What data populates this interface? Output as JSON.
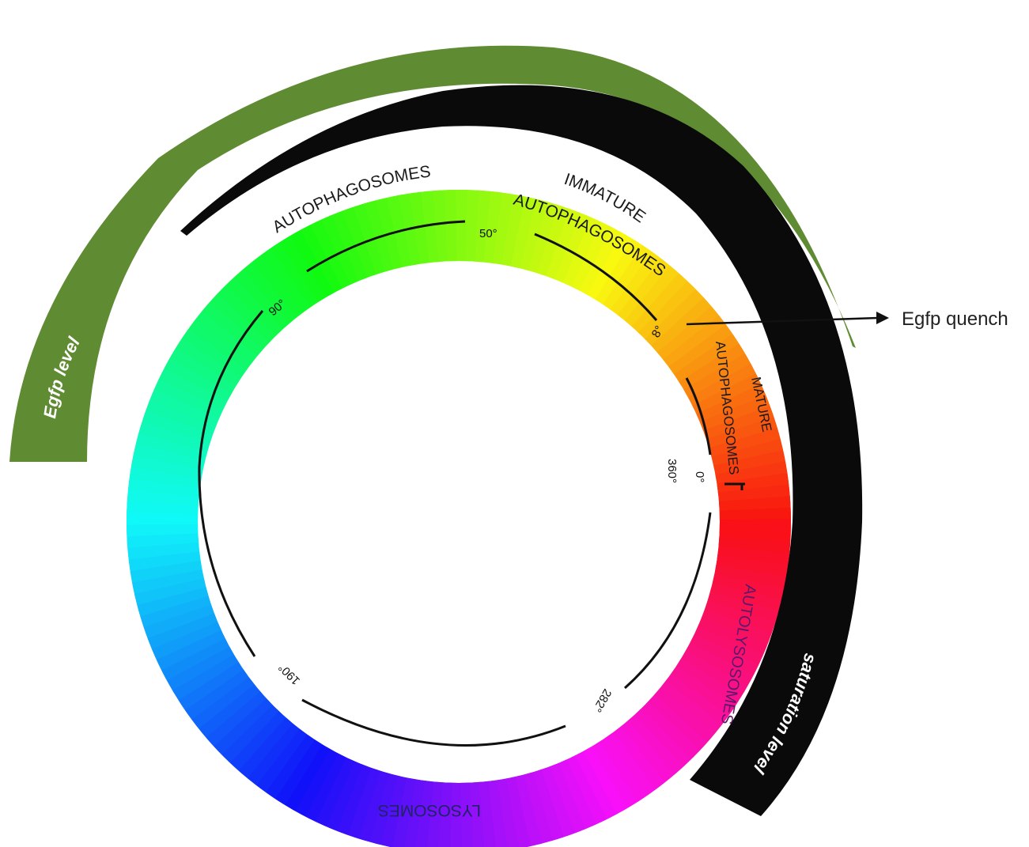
{
  "bands": {
    "egfp_level": {
      "label": "Egfp level",
      "color": "#5f8b32"
    },
    "saturation_level": {
      "label": "saturation level",
      "color": "#0a0a0a"
    }
  },
  "ring_labels": {
    "autophagosomes": "AUTOPHAGOSOMES",
    "immature_1": "IMMATURE",
    "immature_2": "AUTOPHAGOSOMES",
    "mature_1": "MATURE",
    "mature_2": "AUTOPHAGOSOMES",
    "autolysosomes": "AUTOLYSOSOMES",
    "lysosomes": "LYSOSOMES"
  },
  "degree_marks": {
    "d50": "50°",
    "d90": "90°",
    "d8": "8°",
    "d0": "0°",
    "d360": "360°",
    "d282": "282°",
    "d190": "190°"
  },
  "annotation": {
    "quench_label": "Egfp quench"
  }
}
